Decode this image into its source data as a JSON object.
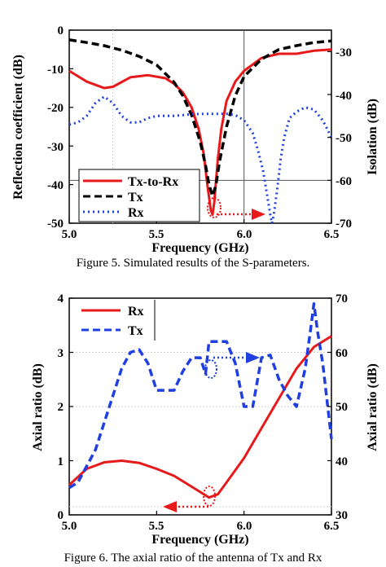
{
  "chart_data": [
    {
      "type": "line",
      "xlabel": "Frequency (GHz)",
      "ylabel": "Reflection coefficient (dB)",
      "y2label": "Isolation (dB)",
      "xlim": [
        5.0,
        6.5
      ],
      "ylim": [
        -50,
        0
      ],
      "y2lim": [
        -70,
        -25
      ],
      "xticks": [
        "5.0",
        "5.5",
        "6.0",
        "6.5"
      ],
      "yticks": [
        "0",
        "-10",
        "-20",
        "-30",
        "-40",
        "-50"
      ],
      "y2ticks": [
        "-30",
        "-40",
        "-50",
        "-60",
        "-70"
      ],
      "legend_position": "bottom-left",
      "caption": "Figure 5. Simulated results of the S-parameters.",
      "colors": {
        "tx_to_rx": "#e8191b",
        "tx": "#000000",
        "rx": "#1f3fe0"
      },
      "series": [
        {
          "name": "Tx-to-Rx",
          "axis": "right",
          "style": "solid",
          "x": [
            5.0,
            5.1,
            5.2,
            5.25,
            5.35,
            5.45,
            5.55,
            5.6,
            5.65,
            5.7,
            5.74,
            5.77,
            5.79,
            5.81,
            5.82,
            5.83,
            5.85,
            5.87,
            5.9,
            5.95,
            6.0,
            6.1,
            6.2,
            6.3,
            6.4,
            6.5
          ],
          "y": [
            -34.5,
            -37,
            -38.5,
            -38.2,
            -36,
            -35.5,
            -36.2,
            -37.5,
            -39.5,
            -43,
            -48,
            -54,
            -61,
            -67,
            -68,
            -65,
            -55,
            -48,
            -41.5,
            -37,
            -34.5,
            -31.5,
            -30.5,
            -30.5,
            -29.8,
            -29.5
          ]
        },
        {
          "name": "Tx",
          "axis": "left",
          "style": "dashed",
          "x": [
            5.0,
            5.1,
            5.2,
            5.3,
            5.4,
            5.5,
            5.6,
            5.65,
            5.7,
            5.75,
            5.78,
            5.8,
            5.82,
            5.84,
            5.86,
            5.9,
            5.95,
            6.0,
            6.1,
            6.2,
            6.3,
            6.4,
            6.5
          ],
          "y": [
            -2.5,
            -3.2,
            -4,
            -5.2,
            -6.8,
            -9,
            -13.5,
            -17,
            -22,
            -29,
            -35,
            -40,
            -43,
            -40,
            -34,
            -25,
            -17,
            -12,
            -7.5,
            -5,
            -4,
            -3.2,
            -2.8
          ]
        },
        {
          "name": "Rx",
          "axis": "right",
          "style": "dotted",
          "x": [
            5.0,
            5.05,
            5.1,
            5.15,
            5.2,
            5.25,
            5.3,
            5.35,
            5.4,
            5.45,
            5.5,
            5.55,
            5.6,
            5.7,
            5.8,
            5.9,
            5.95,
            6.0,
            6.05,
            6.08,
            6.11,
            6.13,
            6.15,
            6.16,
            6.17,
            6.19,
            6.21,
            6.23,
            6.26,
            6.3,
            6.35,
            6.4,
            6.45,
            6.5
          ],
          "y": [
            -47,
            -46.5,
            -45,
            -42,
            -40.5,
            -42,
            -45,
            -46.5,
            -46.5,
            -45.5,
            -45,
            -45,
            -45,
            -44.6,
            -44.5,
            -44.5,
            -44.8,
            -46,
            -49,
            -53,
            -58,
            -63,
            -68,
            -70,
            -68,
            -62,
            -55,
            -50,
            -45.5,
            -44,
            -43,
            -43.5,
            -46,
            -50
          ]
        }
      ]
    },
    {
      "type": "line",
      "xlabel": "Frequency (GHz)",
      "ylabel": "Axial ratio (dB)",
      "y2label": "Axial ratio (dB)",
      "xlim": [
        5.0,
        6.5
      ],
      "ylim": [
        0,
        4
      ],
      "y2lim": [
        30,
        70
      ],
      "xticks": [
        "5.0",
        "5.5",
        "6.0",
        "6.5"
      ],
      "yticks": [
        "0",
        "1",
        "2",
        "3",
        "4"
      ],
      "y2ticks": [
        "30",
        "40",
        "50",
        "60",
        "70"
      ],
      "legend_position": "top-left",
      "caption": "Figure 6. The axial ratio of the antenna of Tx and Rx",
      "colors": {
        "rx": "#e8191b",
        "tx": "#1f3fe0"
      },
      "series": [
        {
          "name": "Rx",
          "axis": "left",
          "style": "solid",
          "x": [
            5.0,
            5.1,
            5.2,
            5.3,
            5.4,
            5.5,
            5.6,
            5.7,
            5.8,
            5.85,
            5.9,
            6.0,
            6.1,
            6.2,
            6.3,
            6.4,
            6.5
          ],
          "y": [
            0.55,
            0.85,
            0.97,
            1.0,
            0.96,
            0.85,
            0.72,
            0.52,
            0.32,
            0.38,
            0.6,
            1.05,
            1.6,
            2.15,
            2.7,
            3.1,
            3.3
          ]
        },
        {
          "name": "Tx",
          "axis": "right",
          "style": "dashed",
          "x": [
            5.0,
            5.05,
            5.1,
            5.15,
            5.2,
            5.25,
            5.3,
            5.35,
            5.4,
            5.45,
            5.5,
            5.6,
            5.65,
            5.7,
            5.75,
            5.78,
            5.8,
            5.85,
            5.9,
            5.95,
            6.0,
            6.05,
            6.1,
            6.15,
            6.2,
            6.25,
            6.3,
            6.35,
            6.38,
            6.4,
            6.42,
            6.45,
            6.5
          ],
          "y": [
            35,
            36,
            39,
            42,
            47,
            52,
            57,
            60,
            60.5,
            58,
            53,
            53,
            56.5,
            59,
            59,
            56,
            62,
            62,
            62,
            58,
            50,
            50,
            59,
            59.5,
            55,
            52,
            50,
            57,
            64,
            69,
            64,
            58,
            44
          ]
        }
      ]
    }
  ]
}
